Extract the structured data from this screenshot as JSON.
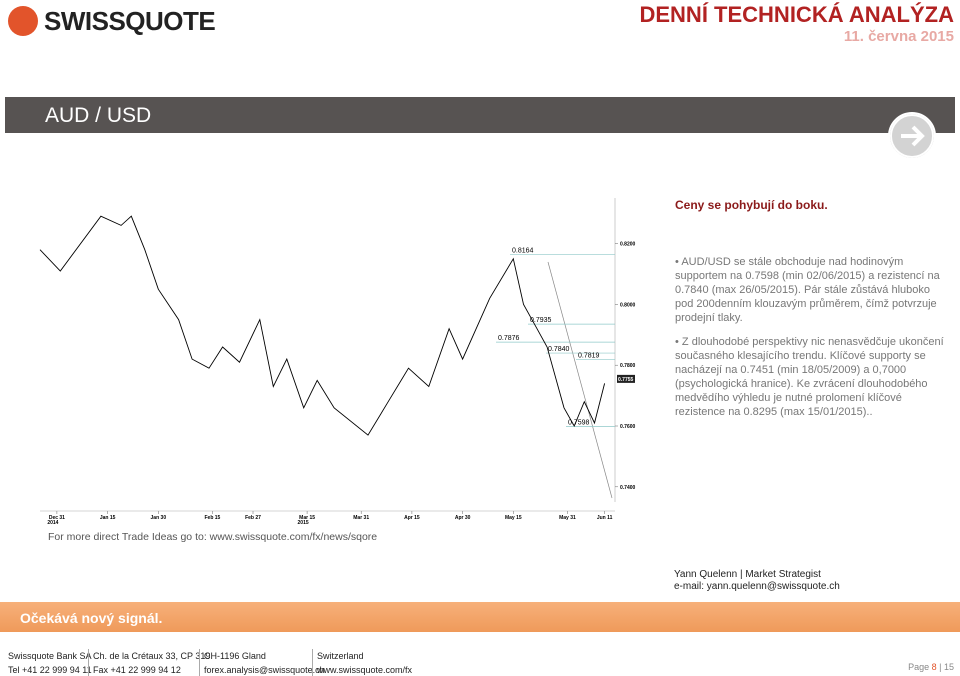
{
  "header": {
    "logo": "SWISSQUOTE",
    "title": "DENNÍ TECHNICKÁ ANALÝZA",
    "date": "11. června 2015"
  },
  "banner": {
    "title": "AUD / USD"
  },
  "subtitle": "Ceny se pohybují do boku.",
  "bullets": [
    "AUD/USD se stále obchoduje nad hodinovým supportem na 0.7598 (min 02/06/2015) a rezistencí na 0.7840 (max 26/05/2015). Pár stále zůstává hluboko pod 200denním klouzavým průměrem, čímž potvrzuje prodejní tlaky.",
    "Z dlouhodobé perspektivy nic nenasvědčuje ukončení současného klesajícího trendu. Klíčové supporty se nacházejí na 0.7451 (min 18/05/2009) a 0,7000 (psychologická hranice). Ke zvrácení dlouhodobého medvědího výhledu je nutné prolomení klíčové rezistence na 0.8295 (max 15/01/2015).."
  ],
  "chart_data": {
    "type": "line",
    "color": "#000000",
    "x": [
      "2014-12-26",
      "2015-01-01",
      "2015-01-13",
      "2015-01-19",
      "2015-01-22",
      "2015-01-26",
      "2015-01-30",
      "2015-02-05",
      "2015-02-09",
      "2015-02-14",
      "2015-02-18",
      "2015-02-23",
      "2015-03-01",
      "2015-03-05",
      "2015-03-09",
      "2015-03-14",
      "2015-03-18",
      "2015-03-23",
      "2015-04-02",
      "2015-04-08",
      "2015-04-14",
      "2015-04-20",
      "2015-04-26",
      "2015-04-30",
      "2015-05-08",
      "2015-05-15",
      "2015-05-18",
      "2015-05-22",
      "2015-05-25",
      "2015-05-30",
      "2015-06-02",
      "2015-06-05",
      "2015-06-08",
      "2015-06-11"
    ],
    "values": [
      0.818,
      0.811,
      0.829,
      0.826,
      0.829,
      0.818,
      0.805,
      0.795,
      0.782,
      0.779,
      0.786,
      0.781,
      0.795,
      0.773,
      0.782,
      0.766,
      0.775,
      0.766,
      0.757,
      0.768,
      0.779,
      0.773,
      0.792,
      0.782,
      0.802,
      0.815,
      0.8,
      0.792,
      0.786,
      0.766,
      0.76,
      0.768,
      0.761,
      0.774
    ],
    "xlim": [
      "2014-12-26",
      "2015-06-12"
    ],
    "xticks": [
      {
        "value": "2014-12-31",
        "label": "Dec 31"
      },
      {
        "value": "2015-01-15",
        "label": "Jan 15"
      },
      {
        "value": "2015-01-30",
        "label": "Jan 30"
      },
      {
        "value": "2015-02-15",
        "label": "Feb 15"
      },
      {
        "value": "2015-02-27",
        "label": "Feb 27"
      },
      {
        "value": "2015-03-15",
        "label": "Mar 15"
      },
      {
        "value": "2015-03-31",
        "label": "Mar 31"
      },
      {
        "value": "2015-04-15",
        "label": "Apr 15"
      },
      {
        "value": "2015-04-30",
        "label": "Apr 30"
      },
      {
        "value": "2015-05-15",
        "label": "May 15"
      },
      {
        "value": "2015-05-31",
        "label": "May 31"
      },
      {
        "value": "2015-06-11",
        "label": "Jun 11"
      }
    ],
    "year_labels": [
      {
        "value": "2014-12-31",
        "label": "2014"
      },
      {
        "value": "2015-03-15",
        "label": "2015"
      }
    ],
    "ylim": [
      0.735,
      0.835
    ],
    "yticks": [
      {
        "value": 0.82,
        "label": "0.8200"
      },
      {
        "value": 0.8,
        "label": "0.8000"
      },
      {
        "value": 0.78,
        "label": "0.7800"
      },
      {
        "value": 0.76,
        "label": "0.7600"
      },
      {
        "value": 0.74,
        "label": "0.7400"
      }
    ],
    "price_label": {
      "value": 0.7755,
      "label": "0.7755"
    },
    "levels": [
      {
        "value": 0.8164,
        "label": "0.8164"
      },
      {
        "value": 0.7935,
        "label": "0.7935"
      },
      {
        "value": 0.7876,
        "label": "0.7876"
      },
      {
        "value": 0.784,
        "label": "0.7840"
      },
      {
        "value": 0.7819,
        "label": "0.7819"
      },
      {
        "value": 0.7598,
        "label": "0.7598"
      }
    ]
  },
  "link": "For more direct Trade Ideas go to: www.swissquote.com/fx/news/sqore",
  "author": {
    "name": "Yann Quelenn | Market Strategist",
    "email": "e-mail: yann.quelenn@swissquote.ch"
  },
  "signal": "Očekává nový signál.",
  "footer": {
    "columns": [
      [
        "Swissquote Bank SA",
        "Tel +41 22 999 94 11"
      ],
      [
        "Ch. de la Crétaux 33, CP 319",
        "Fax +41 22 999 94 12"
      ],
      [
        "CH-1196 Gland",
        "forex.analysis@swissquote.ch"
      ],
      [
        "Switzerland",
        "www.swissquote.com/fx"
      ]
    ],
    "page_word": "Page",
    "page": "8",
    "pages": "15"
  }
}
